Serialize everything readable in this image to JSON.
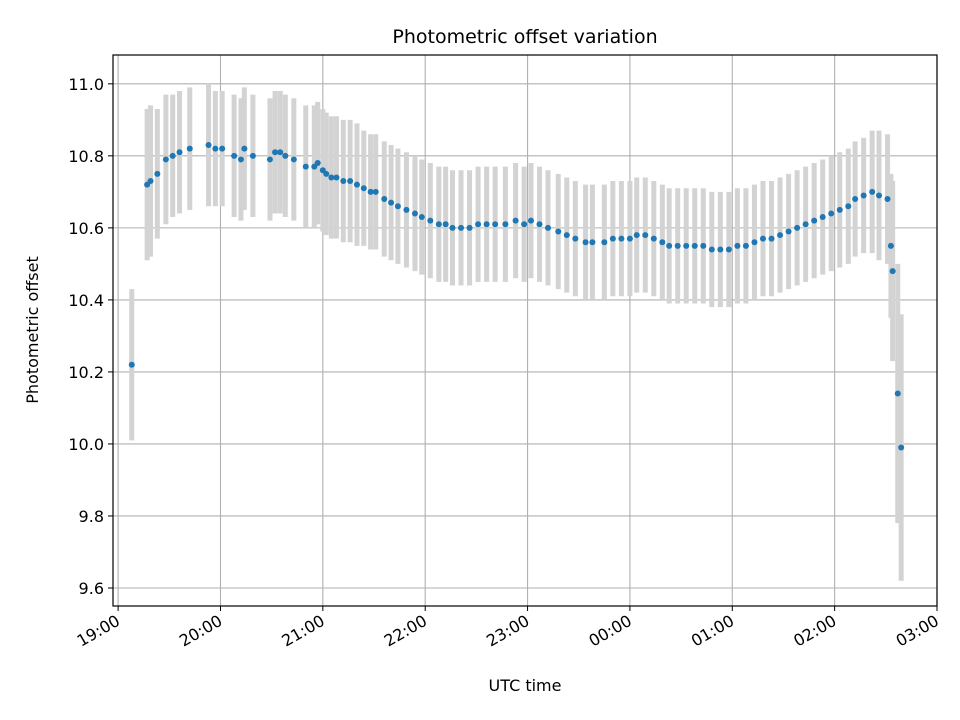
{
  "chart_data": {
    "type": "scatter",
    "title": "Photometric offset variation",
    "xlabel": "UTC time",
    "ylabel": "Photometric offset",
    "x_ticks": [
      "19:00",
      "20:00",
      "21:00",
      "22:00",
      "23:00",
      "00:00",
      "01:00",
      "02:00",
      "03:00"
    ],
    "y_ticks": [
      "9.6",
      "9.8",
      "10.0",
      "10.2",
      "10.4",
      "10.6",
      "10.8",
      "11.0"
    ],
    "xlim": [
      "2024-01-01T18:57",
      "2024-01-02T03:00"
    ],
    "ylim": [
      9.55,
      11.08
    ],
    "grid": true,
    "colors": {
      "points": "#1f77b4",
      "errorbars": "#d3d3d3",
      "grid": "#b0b0b0"
    },
    "series": [
      {
        "x": [
          "19:08",
          "19:17",
          "19:19",
          "19:23",
          "19:28",
          "19:32",
          "19:36",
          "19:42",
          "19:53",
          "19:57",
          "20:01",
          "20:08",
          "20:12",
          "20:14",
          "20:19",
          "20:29",
          "20:32",
          "20:35",
          "20:38",
          "20:43",
          "20:50",
          "20:55",
          "20:57",
          "21:00",
          "21:02",
          "21:05",
          "21:08",
          "21:12",
          "21:16",
          "21:20",
          "21:24",
          "21:28",
          "21:31",
          "21:36",
          "21:40",
          "21:44",
          "21:49",
          "21:54",
          "21:58",
          "22:03",
          "22:08",
          "22:12",
          "22:16",
          "22:21",
          "22:26",
          "22:31",
          "22:36",
          "22:41",
          "22:47",
          "22:53",
          "22:58",
          "23:02",
          "23:07",
          "23:12",
          "23:18",
          "23:23",
          "23:28",
          "23:34",
          "23:38",
          "23:45",
          "23:50",
          "23:55",
          "00:00",
          "00:04",
          "00:09",
          "00:14",
          "00:19",
          "00:23",
          "00:28",
          "00:33",
          "00:38",
          "00:43",
          "00:48",
          "00:53",
          "00:58",
          "01:03",
          "01:08",
          "01:13",
          "01:18",
          "01:23",
          "01:28",
          "01:33",
          "01:38",
          "01:43",
          "01:48",
          "01:53",
          "01:58",
          "02:03",
          "02:08",
          "02:12",
          "02:17",
          "02:22",
          "02:26",
          "02:31",
          "02:33",
          "02:34",
          "02:37",
          "02:39"
        ],
        "y": [
          10.22,
          10.72,
          10.73,
          10.75,
          10.79,
          10.8,
          10.81,
          10.82,
          10.83,
          10.82,
          10.82,
          10.8,
          10.79,
          10.82,
          10.8,
          10.79,
          10.81,
          10.81,
          10.8,
          10.79,
          10.77,
          10.77,
          10.78,
          10.76,
          10.75,
          10.74,
          10.74,
          10.73,
          10.73,
          10.72,
          10.71,
          10.7,
          10.7,
          10.68,
          10.67,
          10.66,
          10.65,
          10.64,
          10.63,
          10.62,
          10.61,
          10.61,
          10.6,
          10.6,
          10.6,
          10.61,
          10.61,
          10.61,
          10.61,
          10.62,
          10.61,
          10.62,
          10.61,
          10.6,
          10.59,
          10.58,
          10.57,
          10.56,
          10.56,
          10.56,
          10.57,
          10.57,
          10.57,
          10.58,
          10.58,
          10.57,
          10.56,
          10.55,
          10.55,
          10.55,
          10.55,
          10.55,
          10.54,
          10.54,
          10.54,
          10.55,
          10.55,
          10.56,
          10.57,
          10.57,
          10.58,
          10.59,
          10.6,
          10.61,
          10.62,
          10.63,
          10.64,
          10.65,
          10.66,
          10.68,
          10.69,
          10.7,
          10.69,
          10.68,
          10.55,
          10.48,
          10.14,
          9.99
        ],
        "err": [
          0.21,
          0.21,
          0.21,
          0.18,
          0.18,
          0.17,
          0.17,
          0.17,
          0.17,
          0.16,
          0.16,
          0.17,
          0.17,
          0.17,
          0.17,
          0.17,
          0.17,
          0.17,
          0.17,
          0.17,
          0.17,
          0.17,
          0.17,
          0.17,
          0.17,
          0.17,
          0.17,
          0.17,
          0.17,
          0.17,
          0.16,
          0.16,
          0.16,
          0.16,
          0.16,
          0.16,
          0.16,
          0.16,
          0.16,
          0.16,
          0.16,
          0.16,
          0.16,
          0.16,
          0.16,
          0.16,
          0.16,
          0.16,
          0.16,
          0.16,
          0.16,
          0.16,
          0.16,
          0.16,
          0.16,
          0.16,
          0.16,
          0.16,
          0.16,
          0.16,
          0.16,
          0.16,
          0.16,
          0.16,
          0.16,
          0.16,
          0.16,
          0.16,
          0.16,
          0.16,
          0.16,
          0.16,
          0.16,
          0.16,
          0.16,
          0.16,
          0.16,
          0.16,
          0.16,
          0.16,
          0.16,
          0.16,
          0.16,
          0.16,
          0.16,
          0.16,
          0.16,
          0.16,
          0.16,
          0.16,
          0.16,
          0.17,
          0.18,
          0.18,
          0.2,
          0.25,
          0.36,
          0.37
        ]
      }
    ]
  }
}
